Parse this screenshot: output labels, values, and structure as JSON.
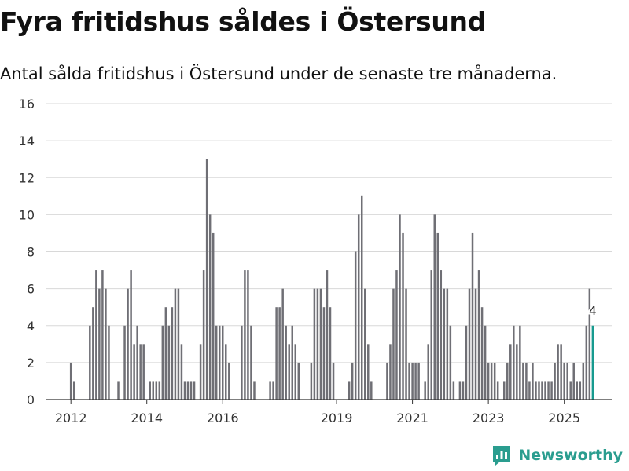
{
  "title": "Fyra fritidshus såldes i Östersund",
  "subtitle": "Antal sålda fritidshus i Östersund under de senaste tre månaderna.",
  "brand": {
    "name": "Newsworthy",
    "color": "#2a9d8f",
    "icon": "newsworthy-logo-icon"
  },
  "colors": {
    "bar": "#6f6f75",
    "highlight": "#179a8f",
    "grid": "#d8d8d8",
    "axis": "#333333"
  },
  "chart_data": {
    "type": "bar",
    "title": "Fyra fritidshus såldes i Östersund",
    "xlabel": "",
    "ylabel": "",
    "ylim": [
      0,
      16
    ],
    "yticks": [
      0,
      2,
      4,
      6,
      8,
      10,
      12,
      14,
      16
    ],
    "xticks": [
      {
        "label": "2012",
        "x": 0
      },
      {
        "label": "2014",
        "x": 24
      },
      {
        "label": "2016",
        "x": 48
      },
      {
        "label": "2019",
        "x": 84
      },
      {
        "label": "2021",
        "x": 108
      },
      {
        "label": "2023",
        "x": 132
      },
      {
        "label": "2025",
        "x": 156
      }
    ],
    "x_domain": [
      -8,
      171
    ],
    "bar_values": [
      2,
      1,
      0,
      0,
      0,
      0,
      4,
      5,
      7,
      6,
      7,
      6,
      4,
      0,
      0,
      1,
      0,
      4,
      6,
      7,
      3,
      4,
      3,
      3,
      0,
      1,
      1,
      1,
      1,
      4,
      5,
      4,
      5,
      6,
      6,
      3,
      1,
      1,
      1,
      1,
      0,
      3,
      7,
      13,
      10,
      9,
      4,
      4,
      4,
      3,
      2,
      0,
      0,
      0,
      4,
      7,
      7,
      4,
      1,
      0,
      0,
      0,
      0,
      1,
      1,
      5,
      5,
      6,
      4,
      3,
      4,
      3,
      2,
      0,
      0,
      0,
      2,
      6,
      6,
      6,
      5,
      7,
      5,
      2,
      0,
      0,
      0,
      0,
      1,
      2,
      8,
      10,
      11,
      6,
      3,
      1,
      0,
      0,
      0,
      0,
      2,
      3,
      6,
      7,
      10,
      9,
      6,
      2,
      2,
      2,
      2,
      0,
      1,
      3,
      7,
      10,
      9,
      7,
      6,
      6,
      4,
      1,
      0,
      1,
      1,
      4,
      6,
      9,
      6,
      7,
      5,
      4,
      2,
      2,
      2,
      1,
      0,
      1,
      2,
      3,
      4,
      3,
      4,
      2,
      2,
      1,
      2,
      1,
      1,
      1,
      1,
      1,
      1,
      2,
      3,
      3,
      2,
      2,
      1,
      2,
      1,
      1,
      2,
      4,
      6,
      4
    ],
    "bars_start_index": 0,
    "highlight_last": true,
    "last_value_label": "4"
  }
}
